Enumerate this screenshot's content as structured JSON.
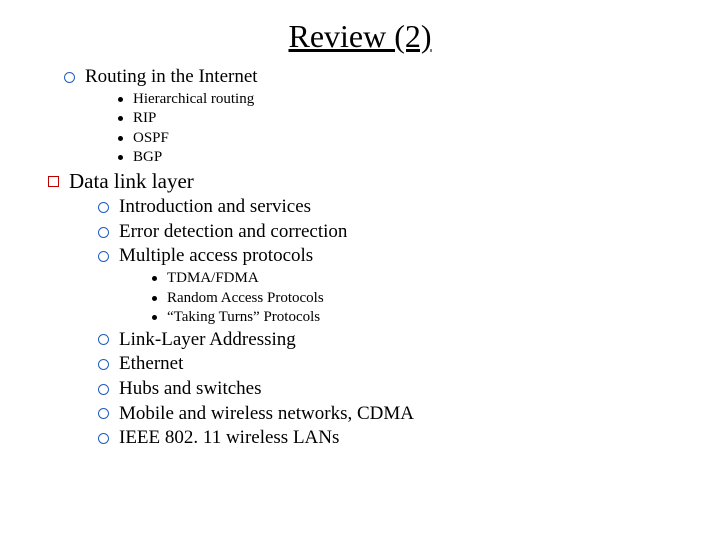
{
  "title": "Review (2)",
  "colors": {
    "circle_border": "#1f5fbf",
    "square_border": "#c00000",
    "text": "#000000",
    "background": "#ffffff"
  },
  "fontsizes": {
    "title": 32,
    "lvl0": 21,
    "lvl1": 19,
    "lvl2": 15
  },
  "sec1": {
    "heading": "Routing in the Internet",
    "items": [
      "Hierarchical routing",
      "RIP",
      "OSPF",
      "BGP"
    ]
  },
  "sec2": {
    "heading": "Data link layer",
    "groupA": [
      "Introduction and services",
      "Error detection and correction",
      "Multiple access protocols"
    ],
    "subA": [
      "TDMA/FDMA",
      "Random Access Protocols",
      "“Taking Turns” Protocols"
    ],
    "groupB": [
      "Link-Layer Addressing",
      "Ethernet",
      "Hubs and switches",
      "Mobile and wireless networks, CDMA",
      "IEEE 802. 11 wireless LANs"
    ]
  }
}
